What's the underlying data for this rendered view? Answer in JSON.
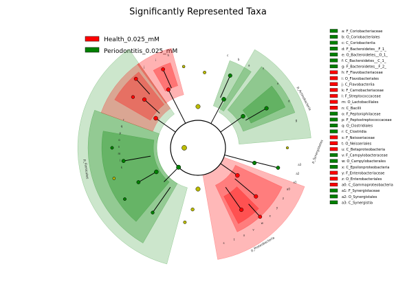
{
  "title": "Significantly Represented Taxa",
  "colors": {
    "health": "#ff0000",
    "periodontitis": "#008000",
    "neutral": "#bcbc00"
  },
  "legend": [
    {
      "label": "Health_0.025_mM",
      "color": "#ff0000"
    },
    {
      "label": "Periodontitis_0.025_mM",
      "color": "#008000"
    }
  ],
  "taxa_key": [
    {
      "text": "a: F_Coriobacteriaceae",
      "color": "#008000"
    },
    {
      "text": "b: O_Coriobacteriales",
      "color": "#008000"
    },
    {
      "text": "c: C_Coriobacteriia",
      "color": "#008000"
    },
    {
      "text": "d: F_Bacteroidetes__F_1_",
      "color": "#008000"
    },
    {
      "text": "e: O_Bacteroidetes__O_1_",
      "color": "#008000"
    },
    {
      "text": "f: C_Bacteroidetes__C_1_",
      "color": "#008000"
    },
    {
      "text": "g: F_Bacteroidetes__F_2_",
      "color": "#008000"
    },
    {
      "text": "h: F_Flavobacteriaceae",
      "color": "#ff0000"
    },
    {
      "text": "i: O_Flavobacteriales",
      "color": "#ff0000"
    },
    {
      "text": "j: C_Flavobacteriia",
      "color": "#ff0000"
    },
    {
      "text": "k: F_Carnobacteriaceae",
      "color": "#ff0000"
    },
    {
      "text": "l: F_Streptococcaceae",
      "color": "#ff0000"
    },
    {
      "text": "m: O_Lactobacillales",
      "color": "#ff0000"
    },
    {
      "text": "n: C_Bacilli",
      "color": "#ff0000"
    },
    {
      "text": "o: F_Peptoniphilaceae",
      "color": "#008000"
    },
    {
      "text": "p: F_Peptostreptococcaceae",
      "color": "#008000"
    },
    {
      "text": "q: O_Clostridiales",
      "color": "#008000"
    },
    {
      "text": "r: C_Clostridia",
      "color": "#008000"
    },
    {
      "text": "s: F_Neisseriaceae",
      "color": "#ff0000"
    },
    {
      "text": "t: O_Neisseriales",
      "color": "#ff0000"
    },
    {
      "text": "u: C_Betaproteobacteria",
      "color": "#ff0000"
    },
    {
      "text": "v: F_Campylobacteraceae",
      "color": "#008000"
    },
    {
      "text": "w: O_Campylobacterales",
      "color": "#008000"
    },
    {
      "text": "x: C_Epsilonproteobacteria",
      "color": "#008000"
    },
    {
      "text": "y: F_Enterobacteriaceae",
      "color": "#ff0000"
    },
    {
      "text": "z: O_Enterobacteriales",
      "color": "#ff0000"
    },
    {
      "text": "a0: C_Gammaproteobacteria",
      "color": "#ff0000"
    },
    {
      "text": "a1: F_Synergistaceae",
      "color": "#008000"
    },
    {
      "text": "a2: O_Synergistales",
      "color": "#008000"
    },
    {
      "text": "a3: C_Synergistia",
      "color": "#008000"
    }
  ],
  "phylum_labels": [
    {
      "text": "p_Actinobacteria"
    },
    {
      "text": "p_Synergistetes"
    },
    {
      "text": "p_Proteobacteria"
    },
    {
      "text": "p_Firmicutes"
    }
  ],
  "clade_letters": {
    "firmicutes": [
      "r",
      "q",
      "p",
      "o",
      "n",
      "m",
      "l",
      "k"
    ],
    "proteobacteria": [
      "a0",
      "z",
      "y",
      "x",
      "w",
      "v",
      "u",
      "t",
      "s"
    ],
    "synergistetes": [
      "a3",
      "a2",
      "a1"
    ],
    "actinobacteria": [
      "c",
      "b",
      "a"
    ],
    "bacteroidetes": [
      "f",
      "e",
      "d",
      "g"
    ],
    "flavobacteria": [
      "j",
      "i",
      "h"
    ]
  }
}
